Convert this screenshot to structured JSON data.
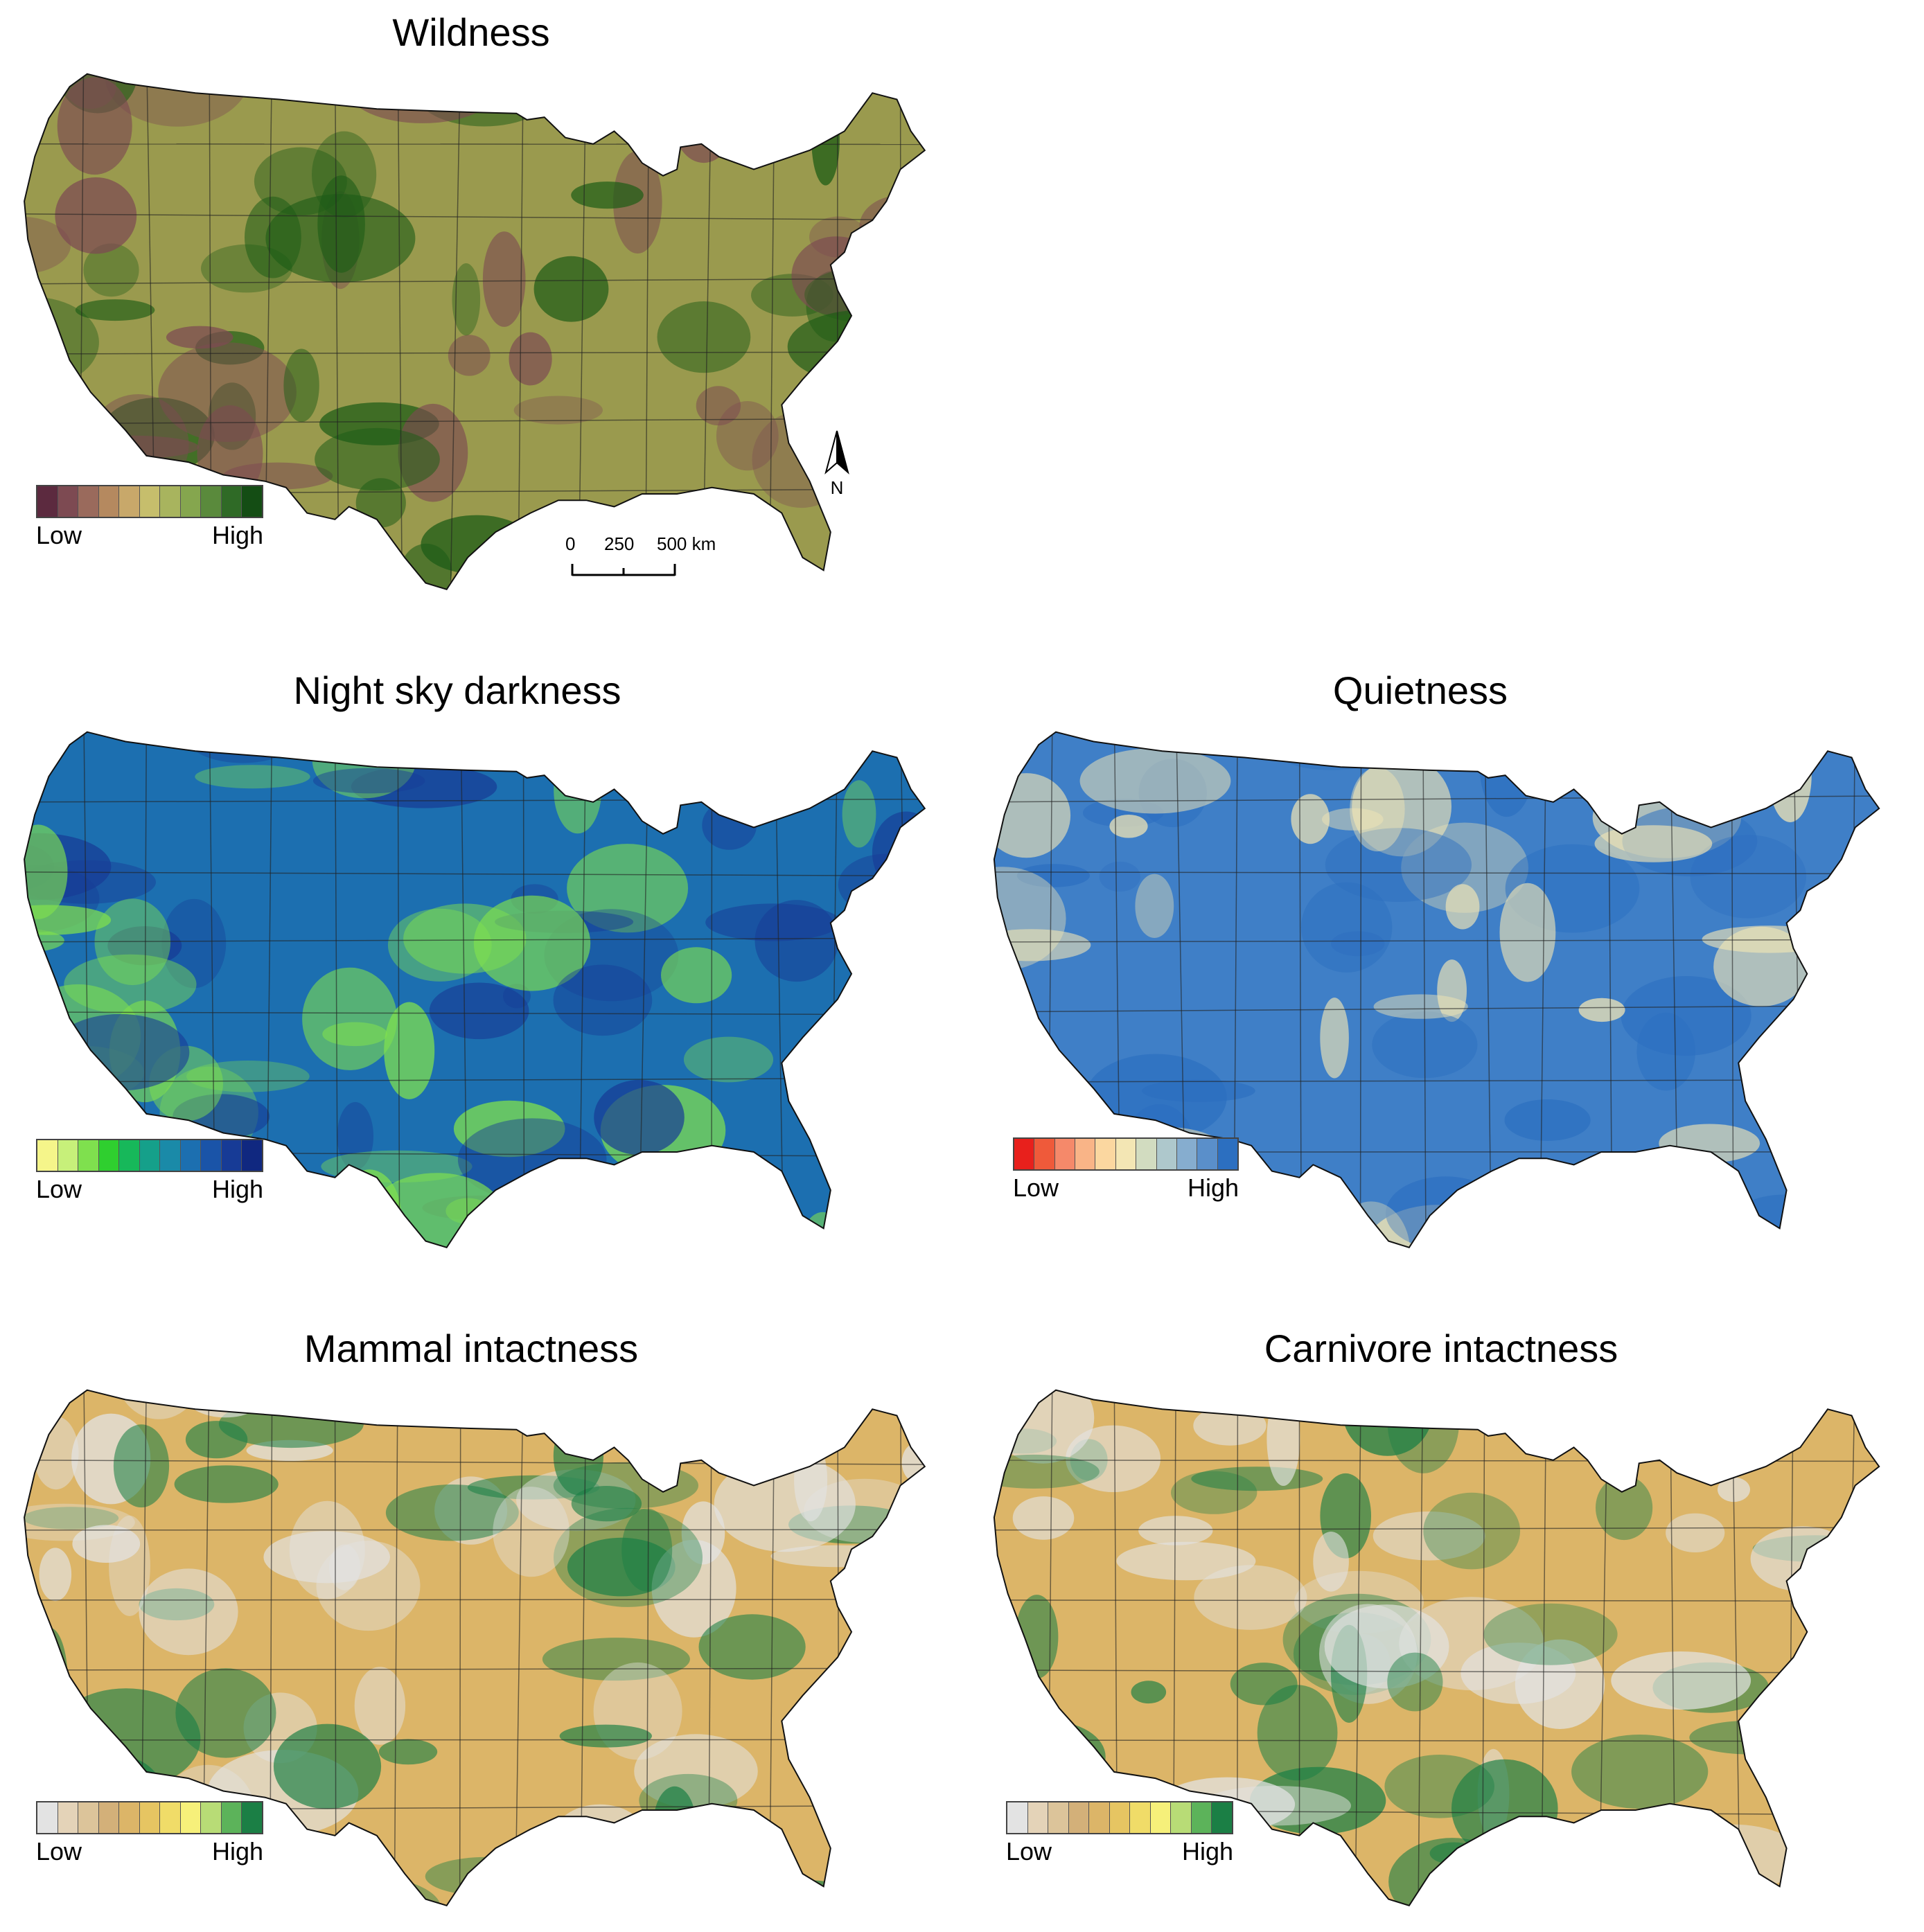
{
  "panels": [
    {
      "key": "wildness",
      "title": "Wildness",
      "legend": {
        "low": "Low",
        "high": "High",
        "colors": [
          "#5c2a3f",
          "#7d4a52",
          "#9a6a5c",
          "#b5895f",
          "#c8a86a",
          "#c6be6c",
          "#a8b45e",
          "#85a64e",
          "#5a8a3c",
          "#2f6a26",
          "#144d14"
        ]
      },
      "map_style": {
        "base": "#9a9a4e",
        "accent": "#1d5c16",
        "mottle": "#7d4a52"
      }
    },
    {
      "key": "night-sky",
      "title": "Night sky darkness",
      "legend": {
        "low": "Low",
        "high": "High",
        "colors": [
          "#f5f58a",
          "#c7f07a",
          "#7fe04e",
          "#2fcf2f",
          "#17b85a",
          "#15a08a",
          "#1a8aa8",
          "#1c6fb0",
          "#1a54a8",
          "#173b96",
          "#102880"
        ]
      },
      "map_style": {
        "base": "#1c6fb0",
        "accent": "#173b96",
        "mottle": "#7fe04e"
      }
    },
    {
      "key": "quietness",
      "title": "Quietness",
      "legend": {
        "low": "Low",
        "high": "High",
        "colors": [
          "#e8201c",
          "#ef5a3a",
          "#f5896a",
          "#f9b487",
          "#fbd7a0",
          "#f3e6b4",
          "#d2dcc0",
          "#aec8cc",
          "#86adcf",
          "#5a8fca",
          "#2c6fc0"
        ]
      },
      "map_style": {
        "base": "#3f7fc7",
        "accent": "#2c6fc0",
        "mottle": "#f3e6b4"
      }
    },
    {
      "key": "mammal",
      "title": "Mammal intactness",
      "legend": {
        "low": "Low",
        "high": "High",
        "colors": [
          "#e3e3e3",
          "#e4d3b8",
          "#dcc49a",
          "#d3b079",
          "#dcb568",
          "#e6c562",
          "#f0dc68",
          "#f6f07a",
          "#b8dc76",
          "#5cb35a",
          "#1b7f45"
        ]
      },
      "map_style": {
        "base": "#dcb568",
        "accent": "#1b7f45",
        "mottle": "#e3e3e3"
      }
    },
    {
      "key": "carnivore",
      "title": "Carnivore intactness",
      "legend": {
        "low": "Low",
        "high": "High",
        "colors": [
          "#e3e3e3",
          "#e4d3b8",
          "#dcc49a",
          "#d3b079",
          "#dcb568",
          "#e6c562",
          "#f0dc68",
          "#f6f07a",
          "#b8dc76",
          "#5cb35a",
          "#1b7f45"
        ]
      },
      "map_style": {
        "base": "#dcb568",
        "accent": "#1b7f45",
        "mottle": "#e3e3e3"
      }
    }
  ],
  "scale_bar": {
    "ticks": [
      "0",
      "250",
      "500 km"
    ]
  },
  "north_arrow": {
    "label": "N"
  },
  "background": "#ffffff"
}
